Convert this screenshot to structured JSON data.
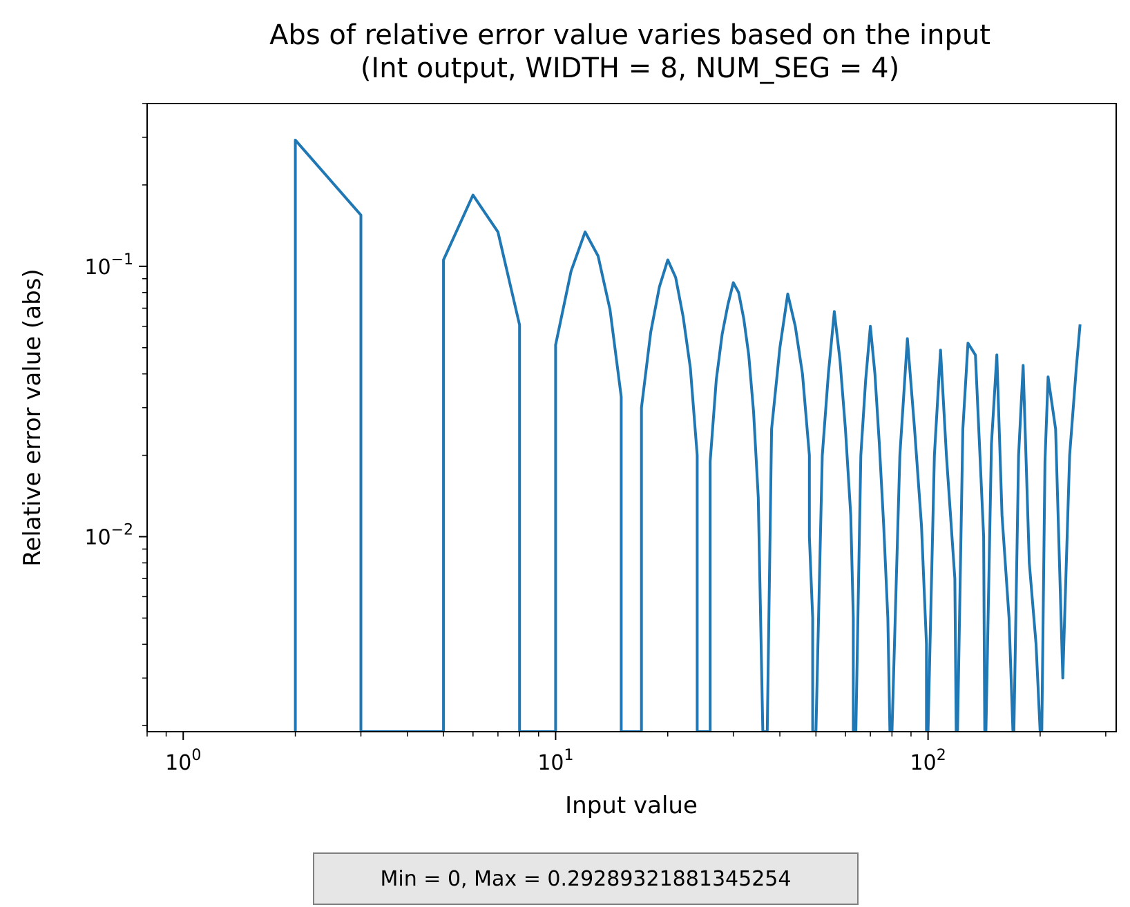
{
  "chart_data": {
    "type": "line",
    "title_lines": [
      "Abs of relative error value varies based on the input",
      "(Int output, WIDTH = 8, NUM_SEG = 4)"
    ],
    "xlabel": "Input value",
    "ylabel": "Relative error value (abs)",
    "x_scale": "log",
    "y_scale": "log",
    "xlim": [
      0.8,
      320
    ],
    "ylim": [
      0.0019,
      0.4
    ],
    "x_ticks": [
      {
        "value": 1,
        "base": "10",
        "exp": "0"
      },
      {
        "value": 10,
        "base": "10",
        "exp": "1"
      },
      {
        "value": 100,
        "base": "10",
        "exp": "2"
      }
    ],
    "y_ticks": [
      {
        "value": 0.01,
        "base": "10",
        "exp": "−2"
      },
      {
        "value": 0.1,
        "base": "10",
        "exp": "−1"
      }
    ],
    "grid": false,
    "line_color": "#1f77b4",
    "floor_value": 0.0019,
    "series": [
      {
        "x": [
          2,
          2,
          3,
          3,
          5,
          5,
          6,
          7,
          8,
          8,
          10,
          10,
          11,
          12,
          13,
          14,
          15,
          15,
          17,
          17,
          18,
          19,
          20,
          21,
          22,
          23,
          24,
          24,
          26,
          26,
          27,
          28,
          29,
          30,
          31,
          32,
          33,
          34,
          35,
          36,
          36,
          37,
          37,
          38,
          40,
          42,
          44,
          46,
          48,
          48,
          49,
          49,
          50,
          52,
          54,
          56,
          58,
          60,
          62,
          63,
          63,
          64,
          64,
          66,
          68,
          70,
          72,
          74,
          76,
          78,
          79,
          79,
          80,
          80,
          84,
          88,
          92,
          96,
          99,
          99,
          100,
          100,
          104,
          108,
          112,
          118,
          119,
          119,
          120,
          120,
          124,
          128,
          134,
          141,
          142,
          142,
          143,
          143,
          148,
          153,
          158,
          165,
          169,
          169,
          170,
          170,
          175,
          180,
          187,
          195,
          200,
          201,
          201,
          202,
          202,
          206,
          210,
          220,
          230,
          240,
          250,
          256
        ],
        "y": [
          0.0019,
          0.2929,
          0.1547,
          0.0019,
          0.0019,
          0.1056,
          0.1835,
          0.134,
          0.0607,
          0.0019,
          0.0019,
          0.0512,
          0.096,
          0.134,
          0.1092,
          0.0691,
          0.0329,
          0.0019,
          0.0019,
          0.03,
          0.057,
          0.084,
          0.1056,
          0.091,
          0.065,
          0.042,
          0.02,
          0.0019,
          0.0019,
          0.019,
          0.038,
          0.056,
          0.072,
          0.087,
          0.08,
          0.064,
          0.047,
          0.029,
          0.014,
          0.0019,
          0.0019,
          0.0019,
          0.0019,
          0.025,
          0.05,
          0.079,
          0.06,
          0.04,
          0.02,
          0.01,
          0.005,
          0.0019,
          0.0019,
          0.02,
          0.04,
          0.068,
          0.045,
          0.025,
          0.012,
          0.005,
          0.0019,
          0.0019,
          0.0019,
          0.02,
          0.038,
          0.06,
          0.04,
          0.022,
          0.011,
          0.005,
          0.0019,
          0.0019,
          0.0019,
          0.0019,
          0.02,
          0.054,
          0.025,
          0.011,
          0.004,
          0.0019,
          0.0019,
          0.0019,
          0.02,
          0.049,
          0.02,
          0.007,
          0.0019,
          0.0019,
          0.0019,
          0.0019,
          0.025,
          0.052,
          0.047,
          0.01,
          0.0019,
          0.0019,
          0.0019,
          0.0019,
          0.022,
          0.047,
          0.012,
          0.005,
          0.0019,
          0.0019,
          0.0019,
          0.0019,
          0.02,
          0.043,
          0.008,
          0.004,
          0.0019,
          0.0019,
          0.0019,
          0.0019,
          0.0019,
          0.019,
          0.039,
          0.025,
          0.003,
          0.02,
          0.042,
          0.061
        ]
      }
    ]
  },
  "stats_text": "Min = 0, Max = 0.29289321881345254"
}
